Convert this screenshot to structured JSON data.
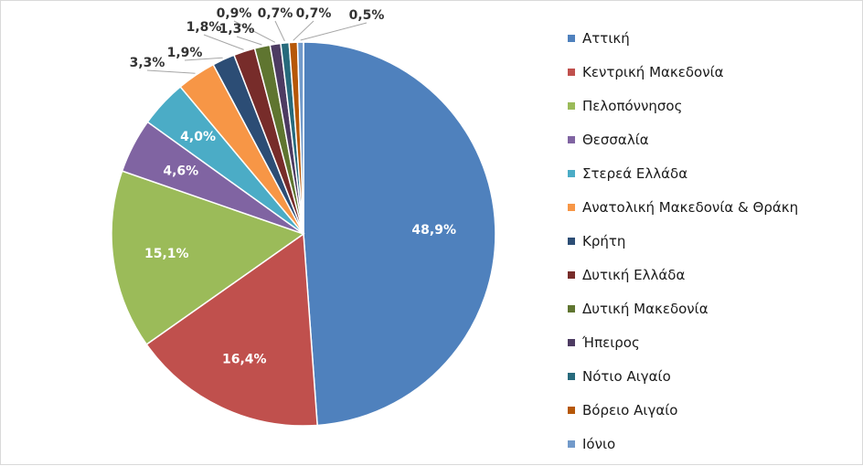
{
  "chart_data": {
    "type": "pie",
    "categories": [
      "Αττική",
      "Κεντρική Μακεδονία",
      "Πελοπόννησος",
      "Θεσσαλία",
      "Στερεά Ελλάδα",
      "Ανατολική Μακεδονία & Θράκη",
      "Κρήτη",
      "Δυτική Ελλάδα",
      "Δυτική Μακεδονία",
      "Ήπειρος",
      "Νότιο Αιγαίο",
      "Βόρειο Αιγαίο",
      "Ιόνιο"
    ],
    "values": [
      48.9,
      16.4,
      15.1,
      4.6,
      4.0,
      3.3,
      1.9,
      1.8,
      1.3,
      0.9,
      0.7,
      0.7,
      0.5
    ],
    "data_labels": [
      "48,9%",
      "16,4%",
      "15,1%",
      "4,6%",
      "4,0%",
      "3,3%",
      "1,9%",
      "1,8%",
      "1,3%",
      "0,9%",
      "0,7%",
      "0,7%",
      "0,5%"
    ],
    "colors": [
      "#4f81bd",
      "#c0504d",
      "#9bbb59",
      "#8064a2",
      "#4bacc6",
      "#f79646",
      "#2c4d75",
      "#772c2a",
      "#5f7530",
      "#4d3b62",
      "#276a7c",
      "#b65708",
      "#729aca"
    ],
    "legend_position": "right",
    "start_angle": "12 o'clock, clockwise",
    "title": "",
    "xlabel": "",
    "ylabel": ""
  }
}
